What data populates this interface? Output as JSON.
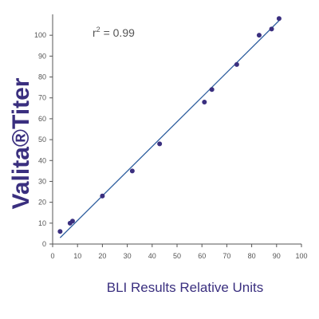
{
  "chart_data": {
    "type": "scatter",
    "title": "",
    "xlabel": "BLI Results Relative Units",
    "ylabel": "Valita®Titer",
    "annotation": {
      "prefix": "r",
      "superscript": "2",
      "suffix": " = 0.99"
    },
    "xlim": [
      0,
      100
    ],
    "ylim": [
      0,
      110
    ],
    "x_ticks": [
      0,
      10,
      20,
      30,
      40,
      50,
      60,
      70,
      80,
      90,
      100
    ],
    "y_ticks": [
      0,
      10,
      20,
      30,
      40,
      50,
      60,
      70,
      80,
      90,
      100
    ],
    "grid": false,
    "points": [
      {
        "x": 3,
        "y": 6
      },
      {
        "x": 7,
        "y": 10
      },
      {
        "x": 8,
        "y": 11
      },
      {
        "x": 20,
        "y": 23
      },
      {
        "x": 32,
        "y": 35
      },
      {
        "x": 43,
        "y": 48
      },
      {
        "x": 61,
        "y": 68
      },
      {
        "x": 64,
        "y": 74
      },
      {
        "x": 74,
        "y": 86
      },
      {
        "x": 83,
        "y": 100
      },
      {
        "x": 88,
        "y": 103
      },
      {
        "x": 91,
        "y": 108
      }
    ],
    "trendline": {
      "x1": 3,
      "y1": 3,
      "x2": 91,
      "y2": 107
    },
    "colors": {
      "points": "#3a2f7f",
      "trendline": "#2f5f9f",
      "axes": "#555555",
      "labels": "#3a2f7f"
    }
  }
}
